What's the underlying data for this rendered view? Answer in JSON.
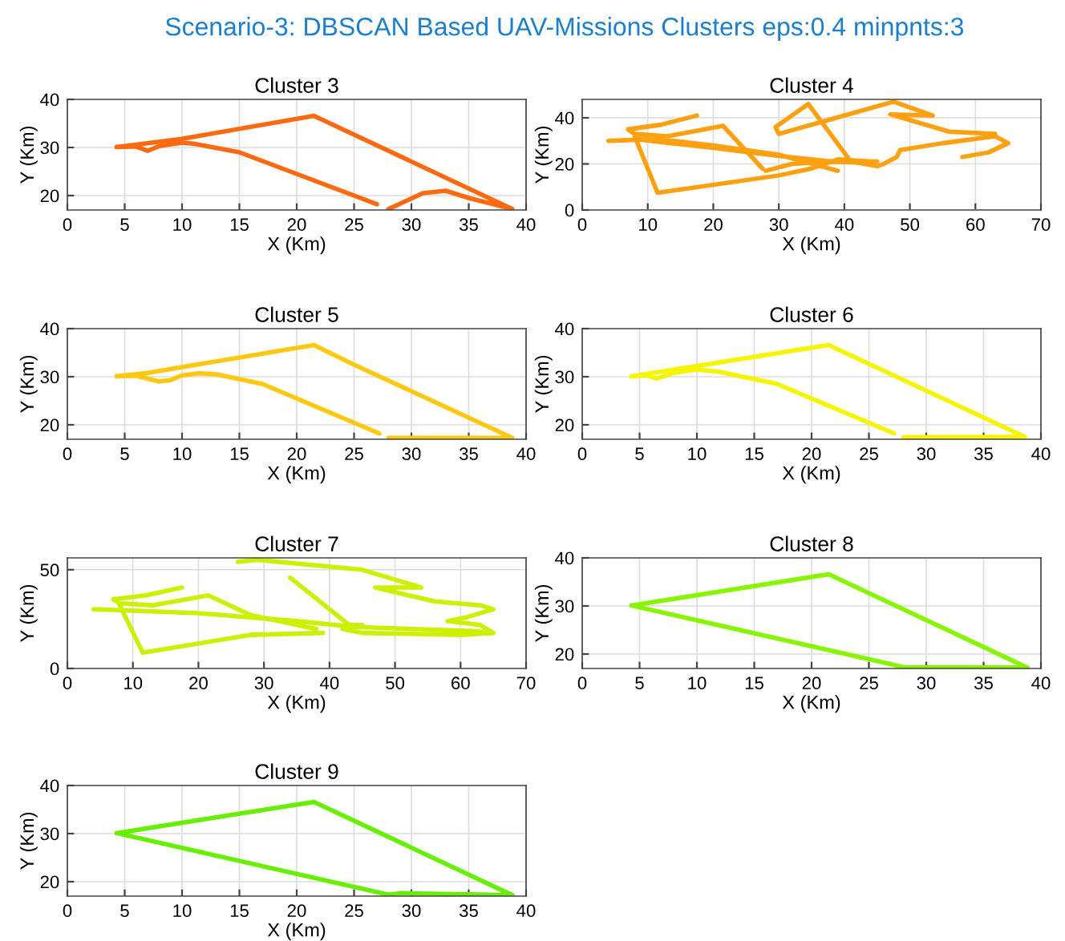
{
  "chart_data": [
    {
      "type": "other",
      "title": "Scenario-3: DBSCAN Based UAV-Missions Clusters eps:0.4 minpnts:3"
    },
    {
      "type": "line",
      "title": "Cluster 3",
      "xlabel": "X (Km)",
      "ylabel": "Y (Km)",
      "xlim": [
        0,
        40
      ],
      "ylim": [
        17,
        40
      ],
      "xticks": [
        0,
        5,
        10,
        15,
        20,
        25,
        30,
        35,
        40
      ],
      "yticks": [
        20,
        30,
        40
      ],
      "grid": true,
      "series": [
        {
          "color": "#ff6a10",
          "x": [
            4.3,
            10,
            21.5,
            38.8,
            35,
            33,
            31,
            28
          ],
          "values": [
            30.1,
            31.8,
            36.6,
            17.2,
            19.5,
            21,
            20.5,
            17.2
          ]
        },
        {
          "color": "#ff6a10",
          "x": [
            4.3,
            6,
            7,
            8,
            10,
            11,
            15,
            27
          ],
          "values": [
            30.1,
            30.2,
            29.3,
            30.3,
            31,
            30.8,
            29,
            18.2
          ]
        }
      ]
    },
    {
      "type": "line",
      "title": "Cluster 4",
      "xlabel": "X (Km)",
      "ylabel": "Y (Km)",
      "xlim": [
        0,
        70
      ],
      "ylim": [
        0,
        48
      ],
      "xticks": [
        0,
        10,
        20,
        30,
        40,
        50,
        60,
        70
      ],
      "yticks": [
        0,
        20,
        40
      ],
      "grid": true,
      "series": [
        {
          "color": "#ffa010",
          "x": [
            17.5,
            12,
            7,
            8,
            13,
            21.5,
            27.5
          ],
          "values": [
            41,
            37,
            35,
            33,
            32,
            36.5,
            18
          ]
        },
        {
          "color": "#ffa010",
          "x": [
            4,
            9,
            12,
            20,
            30,
            38,
            41,
            45,
            46,
            48,
            48.5,
            55,
            63,
            65,
            62,
            58
          ],
          "values": [
            30,
            30.5,
            29.5,
            27,
            23.5,
            21,
            21,
            19,
            20,
            23,
            26,
            29,
            32,
            29,
            25,
            23
          ]
        },
        {
          "color": "#ffa010",
          "x": [
            8,
            11.5,
            30,
            35,
            39,
            44
          ],
          "values": [
            32,
            7.5,
            15,
            18,
            22,
            21
          ]
        },
        {
          "color": "#ffa010",
          "x": [
            8,
            14,
            20,
            30,
            39
          ],
          "values": [
            31,
            30,
            28,
            24,
            17
          ]
        },
        {
          "color": "#ffa010",
          "x": [
            28,
            32,
            38,
            43
          ],
          "values": [
            17,
            20,
            21,
            20.5
          ]
        },
        {
          "color": "#ffa010",
          "x": [
            63,
            56,
            47,
            53.5,
            47.5,
            30,
            29.5,
            34.5,
            41,
            45
          ],
          "values": [
            33,
            34,
            41.5,
            41,
            47,
            33,
            36,
            46,
            21,
            21
          ]
        }
      ]
    },
    {
      "type": "line",
      "title": "Cluster 5",
      "xlabel": "X (Km)",
      "ylabel": "Y (Km)",
      "xlim": [
        0,
        40
      ],
      "ylim": [
        17,
        40
      ],
      "xticks": [
        0,
        5,
        10,
        15,
        20,
        25,
        30,
        35,
        40
      ],
      "yticks": [
        20,
        30,
        40
      ],
      "grid": true,
      "series": [
        {
          "color": "#ffc810",
          "x": [
            4.3,
            7,
            21.5,
            25,
            38.8,
            28
          ],
          "values": [
            30.1,
            30.8,
            36.6,
            32.5,
            17.3,
            17.3
          ]
        },
        {
          "color": "#ffc810",
          "x": [
            4.3,
            6,
            8,
            9,
            10,
            11.5,
            13,
            17,
            27.2
          ],
          "values": [
            30.1,
            30.2,
            29,
            29.3,
            30.3,
            30.7,
            30.5,
            28.5,
            18.2
          ]
        }
      ]
    },
    {
      "type": "line",
      "title": "Cluster 6",
      "xlabel": "X (Km)",
      "ylabel": "Y (Km)",
      "xlim": [
        0,
        40
      ],
      "ylim": [
        17,
        40
      ],
      "xticks": [
        0,
        5,
        10,
        15,
        20,
        25,
        30,
        35,
        40
      ],
      "yticks": [
        20,
        30,
        40
      ],
      "grid": true,
      "series": [
        {
          "color": "#f5f500",
          "x": [
            4.3,
            21.5,
            38.6,
            28
          ],
          "values": [
            30.1,
            36.6,
            17.5,
            17.4
          ]
        },
        {
          "color": "#f5f500",
          "x": [
            4.3,
            5.5,
            6.5,
            8,
            10,
            12,
            17,
            27.2
          ],
          "values": [
            30.1,
            30.3,
            29.6,
            30.8,
            31.5,
            31,
            28.5,
            18.2
          ]
        }
      ]
    },
    {
      "type": "line",
      "title": "Cluster 7",
      "xlabel": "X (Km)",
      "ylabel": "Y (Km)",
      "xlim": [
        0,
        70
      ],
      "ylim": [
        0,
        56
      ],
      "xticks": [
        0,
        10,
        20,
        30,
        40,
        50,
        60,
        70
      ],
      "yticks": [
        0,
        50
      ],
      "grid": true,
      "series": [
        {
          "color": "#ccf000",
          "x": [
            17.5,
            12,
            7,
            8,
            13,
            21.5,
            28,
            38
          ],
          "values": [
            41,
            37,
            35,
            33,
            32,
            37,
            27,
            20
          ]
        },
        {
          "color": "#ccf000",
          "x": [
            4,
            20,
            35,
            44,
            62,
            65,
            60,
            45,
            42
          ],
          "values": [
            30,
            28,
            24,
            21,
            19,
            18,
            17,
            18,
            20
          ]
        },
        {
          "color": "#ccf000",
          "x": [
            8,
            11.5,
            28,
            39
          ],
          "values": [
            32,
            8,
            17,
            18
          ]
        },
        {
          "color": "#ccf000",
          "x": [
            26,
            29,
            45,
            54,
            47,
            56,
            63,
            65,
            61,
            58,
            63,
            65
          ],
          "values": [
            54,
            55,
            50,
            41,
            41,
            34,
            32,
            30,
            26,
            24,
            22,
            18
          ]
        },
        {
          "color": "#ccf000",
          "x": [
            34,
            43,
            45
          ],
          "values": [
            46,
            22,
            22
          ]
        }
      ]
    },
    {
      "type": "line",
      "title": "Cluster 8",
      "xlabel": "X (Km)",
      "ylabel": "Y (Km)",
      "xlim": [
        0,
        40
      ],
      "ylim": [
        17,
        40
      ],
      "xticks": [
        0,
        5,
        10,
        15,
        20,
        25,
        30,
        35,
        40
      ],
      "yticks": [
        20,
        30,
        40
      ],
      "grid": true,
      "series": [
        {
          "color": "#88f500",
          "x": [
            4.3,
            21.5,
            38.8
          ],
          "values": [
            30.1,
            36.6,
            17.2
          ]
        },
        {
          "color": "#88f500",
          "x": [
            4.3,
            28,
            38.8
          ],
          "values": [
            30.1,
            17.3,
            17.2
          ]
        }
      ]
    },
    {
      "type": "line",
      "title": "Cluster 9",
      "xlabel": "X (Km)",
      "ylabel": "Y (Km)",
      "xlim": [
        0,
        40
      ],
      "ylim": [
        17,
        40
      ],
      "xticks": [
        0,
        5,
        10,
        15,
        20,
        25,
        30,
        35,
        40
      ],
      "yticks": [
        20,
        30,
        40
      ],
      "grid": true,
      "series": [
        {
          "color": "#66f000",
          "x": [
            4.3,
            21.5,
            38.8
          ],
          "values": [
            30.1,
            36.6,
            17.2
          ]
        },
        {
          "color": "#66f000",
          "x": [
            4.3,
            28,
            29,
            38.8
          ],
          "values": [
            30.1,
            17.3,
            17.6,
            17.2
          ]
        }
      ]
    }
  ]
}
